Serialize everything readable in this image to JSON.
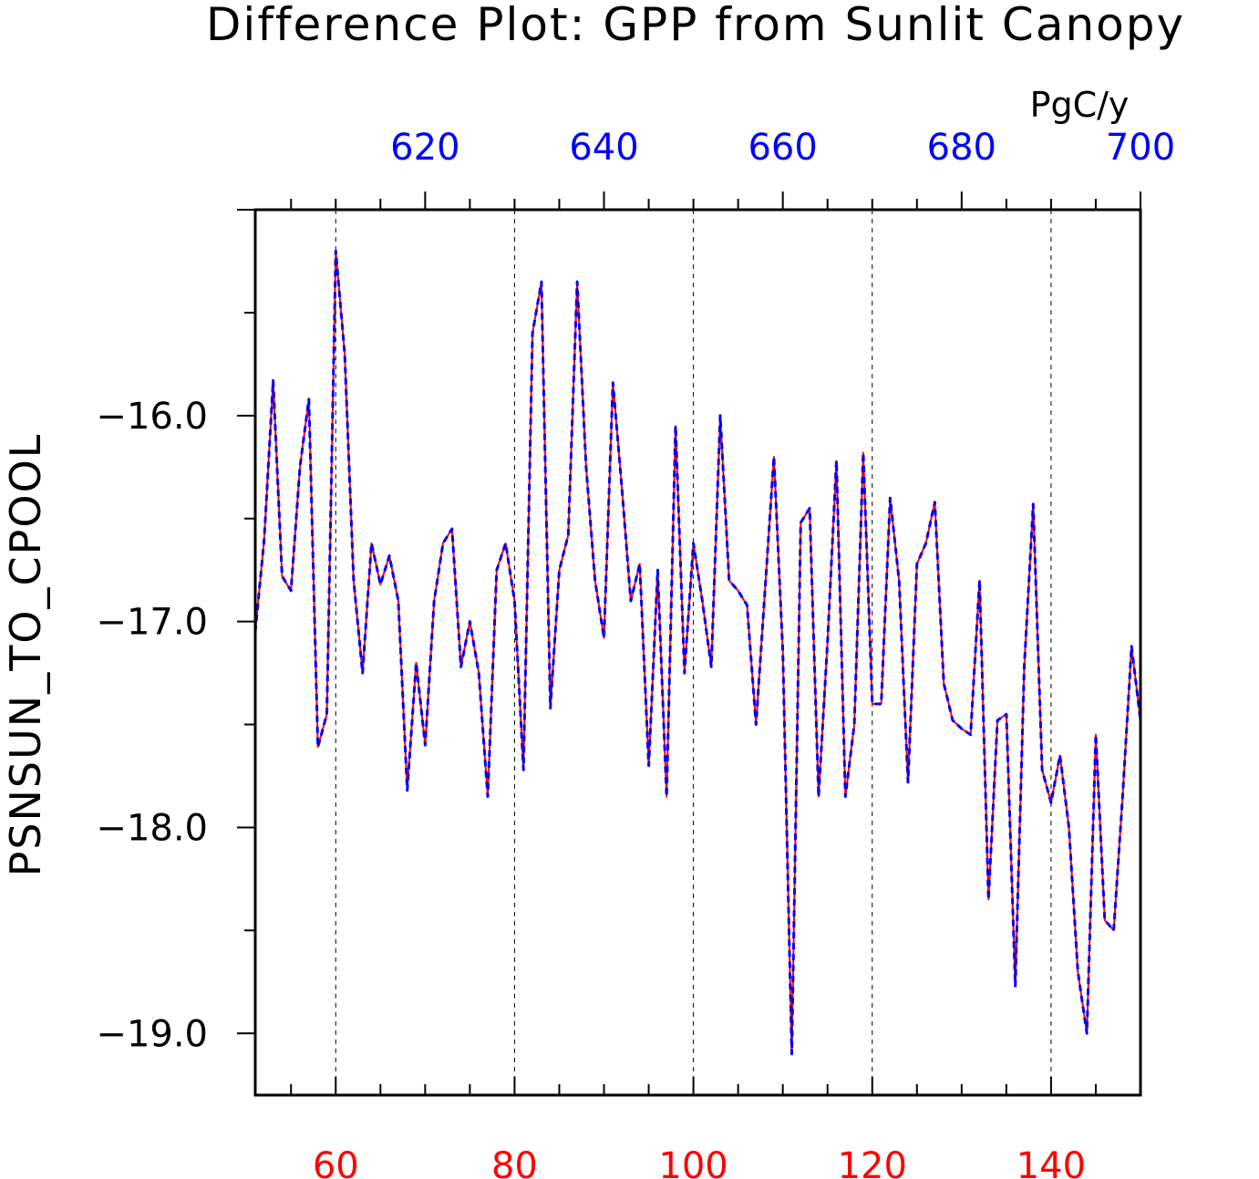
{
  "chart_data": {
    "type": "line",
    "title": "Difference Plot: GPP from Sunlit Canopy",
    "ylabel": "PSNSUN_TO_CPOOL",
    "units": "PgC/y",
    "bottom_axis": {
      "color": "#ff0000",
      "range": [
        51,
        150
      ],
      "ticks": [
        60,
        80,
        100,
        120,
        140
      ],
      "tick_labels": [
        "60",
        "80",
        "100",
        "120",
        "140"
      ]
    },
    "top_axis": {
      "color": "#0000ff",
      "range": [
        601,
        700
      ],
      "ticks": [
        620,
        640,
        660,
        680,
        700
      ],
      "tick_labels": [
        "620",
        "640",
        "660",
        "680",
        "700"
      ]
    },
    "ylim": [
      -19.3,
      -15.0
    ],
    "y_ticks": [
      -16.0,
      -17.0,
      -18.0,
      -19.0
    ],
    "y_tick_labels": [
      "−16.0",
      "−17.0",
      "−18.0",
      "−19.0"
    ],
    "grid": "vertical dashed at major bottom-axis ticks",
    "x": [
      51,
      52,
      53,
      54,
      55,
      56,
      57,
      58,
      59,
      60,
      61,
      62,
      63,
      64,
      65,
      66,
      67,
      68,
      69,
      70,
      71,
      72,
      73,
      74,
      75,
      76,
      77,
      78,
      79,
      80,
      81,
      82,
      83,
      84,
      85,
      86,
      87,
      88,
      89,
      90,
      91,
      92,
      93,
      94,
      95,
      96,
      97,
      98,
      99,
      100,
      101,
      102,
      103,
      104,
      105,
      106,
      107,
      108,
      109,
      110,
      111,
      112,
      113,
      114,
      115,
      116,
      117,
      118,
      119,
      120,
      121,
      122,
      123,
      124,
      125,
      126,
      127,
      128,
      129,
      130,
      131,
      132,
      133,
      134,
      135,
      136,
      137,
      138,
      139,
      140,
      141,
      142,
      143,
      144,
      145,
      146,
      147,
      148,
      149,
      150
    ],
    "series": [
      {
        "color": "#ff0000",
        "style": "solid",
        "axis": "bottom",
        "values": [
          -17.05,
          -16.6,
          -15.83,
          -16.78,
          -16.85,
          -16.25,
          -15.92,
          -17.61,
          -17.45,
          -15.2,
          -15.7,
          -16.8,
          -17.25,
          -16.62,
          -16.82,
          -16.68,
          -16.9,
          -17.82,
          -17.2,
          -17.6,
          -16.9,
          -16.62,
          -16.55,
          -17.22,
          -17.0,
          -17.25,
          -17.85,
          -16.75,
          -16.62,
          -16.9,
          -17.72,
          -15.6,
          -15.35,
          -17.42,
          -16.75,
          -16.58,
          -15.35,
          -16.25,
          -16.8,
          -17.08,
          -15.84,
          -16.35,
          -16.9,
          -16.72,
          -17.7,
          -16.75,
          -17.85,
          -16.05,
          -17.25,
          -16.62,
          -16.9,
          -17.22,
          -16.0,
          -16.8,
          -16.85,
          -16.92,
          -17.5,
          -16.85,
          -16.2,
          -17.15,
          -19.1,
          -16.52,
          -16.45,
          -17.85,
          -17.1,
          -16.22,
          -17.85,
          -17.5,
          -16.18,
          -17.4,
          -17.4,
          -16.4,
          -16.8,
          -17.78,
          -16.72,
          -16.62,
          -16.42,
          -17.3,
          -17.48,
          -17.52,
          -17.55,
          -16.8,
          -18.35,
          -17.48,
          -17.45,
          -18.77,
          -17.22,
          -16.43,
          -17.72,
          -17.88,
          -17.65,
          -18.0,
          -18.7,
          -19.0,
          -17.55,
          -18.45,
          -18.5,
          -17.85,
          -17.12,
          -17.48
        ]
      },
      {
        "color": "#0000ff",
        "style": "dashed",
        "axis": "top",
        "values": [
          -17.05,
          -16.6,
          -15.83,
          -16.78,
          -16.85,
          -16.25,
          -15.92,
          -17.61,
          -17.45,
          -15.2,
          -15.7,
          -16.8,
          -17.25,
          -16.62,
          -16.82,
          -16.68,
          -16.9,
          -17.82,
          -17.2,
          -17.6,
          -16.9,
          -16.62,
          -16.55,
          -17.22,
          -17.0,
          -17.25,
          -17.85,
          -16.75,
          -16.62,
          -16.9,
          -17.72,
          -15.6,
          -15.35,
          -17.42,
          -16.75,
          -16.58,
          -15.35,
          -16.25,
          -16.8,
          -17.08,
          -15.84,
          -16.35,
          -16.9,
          -16.72,
          -17.7,
          -16.75,
          -17.85,
          -16.05,
          -17.25,
          -16.62,
          -16.9,
          -17.22,
          -16.0,
          -16.8,
          -16.85,
          -16.92,
          -17.5,
          -16.85,
          -16.2,
          -17.15,
          -19.1,
          -16.52,
          -16.45,
          -17.85,
          -17.1,
          -16.22,
          -17.85,
          -17.5,
          -16.18,
          -17.4,
          -17.4,
          -16.4,
          -16.8,
          -17.78,
          -16.72,
          -16.62,
          -16.42,
          -17.3,
          -17.48,
          -17.52,
          -17.55,
          -16.8,
          -18.35,
          -17.48,
          -17.45,
          -18.77,
          -17.22,
          -16.43,
          -17.72,
          -17.88,
          -17.65,
          -18.0,
          -18.7,
          -19.0,
          -17.55,
          -18.45,
          -18.5,
          -17.85,
          -17.12,
          -17.48
        ]
      }
    ]
  }
}
